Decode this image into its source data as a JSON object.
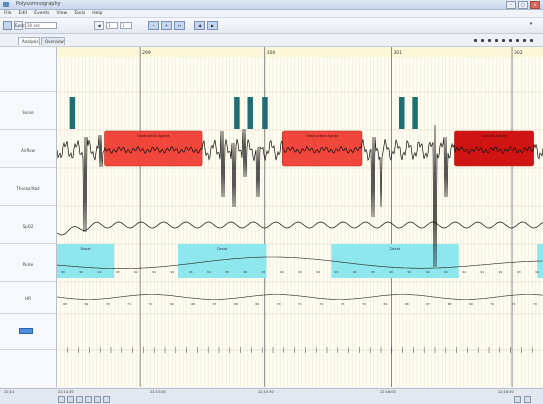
{
  "window": {
    "title": "Polysomnography"
  },
  "menu": {
    "items": [
      "File",
      "Edit",
      "Events",
      "View",
      "Tools",
      "Help"
    ]
  },
  "toolbar": {
    "epoch_label": "Epoch",
    "epoch_value": "30 sec",
    "zoom_value": "1",
    "page_value": "1"
  },
  "tabs": [
    {
      "label": "Analysis"
    },
    {
      "label": "Overview"
    }
  ],
  "channels": [
    {
      "label": ""
    },
    {
      "label": "Snore"
    },
    {
      "label": "Airflow"
    },
    {
      "label": "Thorax/Abd"
    },
    {
      "label": "SpO2"
    },
    {
      "label": "Pulse"
    },
    {
      "label": "HR"
    },
    {
      "label": ""
    },
    {
      "label": ""
    }
  ],
  "events": {
    "apnea": [
      {
        "label": "Obstructive Apnea",
        "start_s": 13.2,
        "end_s": 40.3
      },
      {
        "label": "Obstructive Apnea",
        "start_s": 62.6,
        "end_s": 84.7
      },
      {
        "label": "Central Apnea",
        "start_s": 110.4,
        "end_s": 132.4
      }
    ],
    "desaturation": [
      {
        "label": "Desat",
        "start_s": 0.0,
        "end_s": 15.9
      },
      {
        "label": "Desat",
        "start_s": 33.6,
        "end_s": 58.2
      },
      {
        "label": "Desat",
        "start_s": 76.2,
        "end_s": 111.6
      },
      {
        "label": "",
        "start_s": 133.4,
        "end_s": 135.0
      }
    ],
    "snore_bursts_s": [
      4.2,
      49.9,
      53.6,
      57.7,
      95.7,
      99.4
    ]
  },
  "timeline": {
    "window_s": 135,
    "epoch_markers_s": [
      23.1,
      57.7,
      92.9,
      126.4
    ],
    "epoch_labels": [
      "299",
      "300",
      "301",
      "302"
    ],
    "start_label": "22:14",
    "bottom_time_labels": [
      "22:14:30",
      "22:15:00",
      "22:15:30",
      "22:16:00",
      "22:16:30"
    ]
  },
  "spo2_values": [
    "96",
    "95",
    "94",
    "93",
    "92",
    "91",
    "92",
    "93",
    "94",
    "95",
    "96",
    "95",
    "94",
    "93",
    "92",
    "93",
    "94",
    "95",
    "96",
    "95",
    "94",
    "93",
    "92",
    "91",
    "92",
    "93",
    "94"
  ],
  "hr_values": [
    "68",
    "69",
    "70",
    "71",
    "70",
    "69",
    "68",
    "67",
    "68",
    "69",
    "70",
    "71",
    "72",
    "71",
    "70",
    "69",
    "68",
    "67",
    "68",
    "69",
    "70",
    "71",
    "70"
  ],
  "colors": {
    "obstructive": "#f0463c",
    "central": "#d01414",
    "desat": "#8ee7ec",
    "snore": "#1e6e72"
  }
}
